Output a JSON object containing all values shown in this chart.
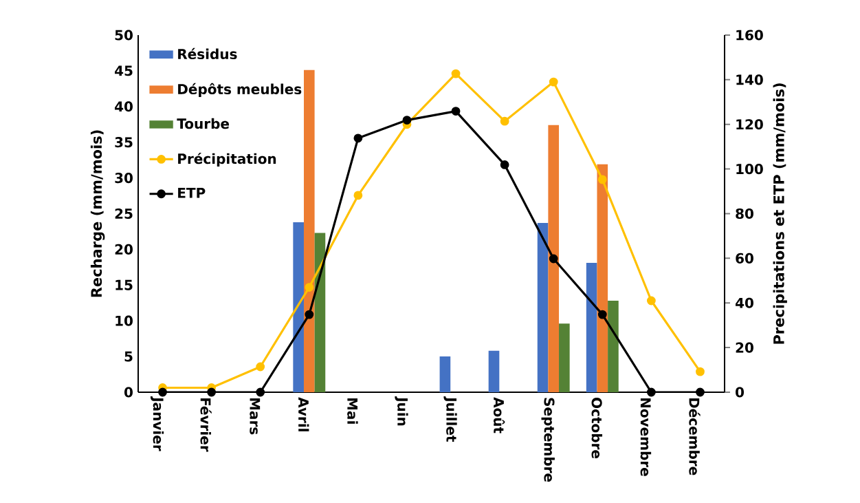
{
  "chart_data": {
    "type": "bar",
    "categories": [
      "Janvier",
      "Février",
      "Mars",
      "Avril",
      "Mai",
      "Juin",
      "Juillet",
      "Août",
      "Septembre",
      "Octobre",
      "Novembre",
      "Décembre"
    ],
    "ylabel": "Recharge (mm/mois)",
    "y2label": "Precipitations et ETP (mm/mois)",
    "ylim": [
      0,
      50
    ],
    "yticks": [
      0,
      5,
      10,
      15,
      20,
      25,
      30,
      35,
      40,
      45,
      50
    ],
    "y2lim": [
      0,
      160
    ],
    "y2ticks": [
      0,
      20,
      40,
      60,
      80,
      100,
      120,
      140,
      160
    ],
    "legend": "top left",
    "grid": false,
    "marker": "circle",
    "series": [
      {
        "name": "Résidus",
        "color": "#4472c4",
        "values": [
          null,
          null,
          null,
          23.8,
          null,
          null,
          5.0,
          5.8,
          23.7,
          18.1,
          null,
          null
        ]
      },
      {
        "name": "Dépôts meubles",
        "color": "#ed7d31",
        "values": [
          null,
          null,
          null,
          45.1,
          null,
          null,
          null,
          null,
          37.4,
          31.9,
          null,
          null
        ]
      },
      {
        "name": "Tourbe",
        "color": "#548235",
        "values": [
          null,
          null,
          null,
          22.3,
          null,
          null,
          null,
          null,
          9.6,
          12.8,
          null,
          null
        ]
      },
      {
        "name": "Précipitation",
        "type": "line",
        "axis": "y2",
        "color": "#ffc000",
        "values": [
          2.0,
          2.0,
          11.4,
          47,
          88.2,
          120,
          142.7,
          121.4,
          139,
          95.3,
          41,
          9.2
        ]
      },
      {
        "name": "ETP",
        "type": "line",
        "axis": "y2",
        "color": "#000000",
        "values": [
          0,
          0,
          0,
          34.8,
          113.8,
          121.9,
          125.9,
          101.9,
          59.8,
          34.8,
          0,
          0
        ]
      }
    ]
  }
}
